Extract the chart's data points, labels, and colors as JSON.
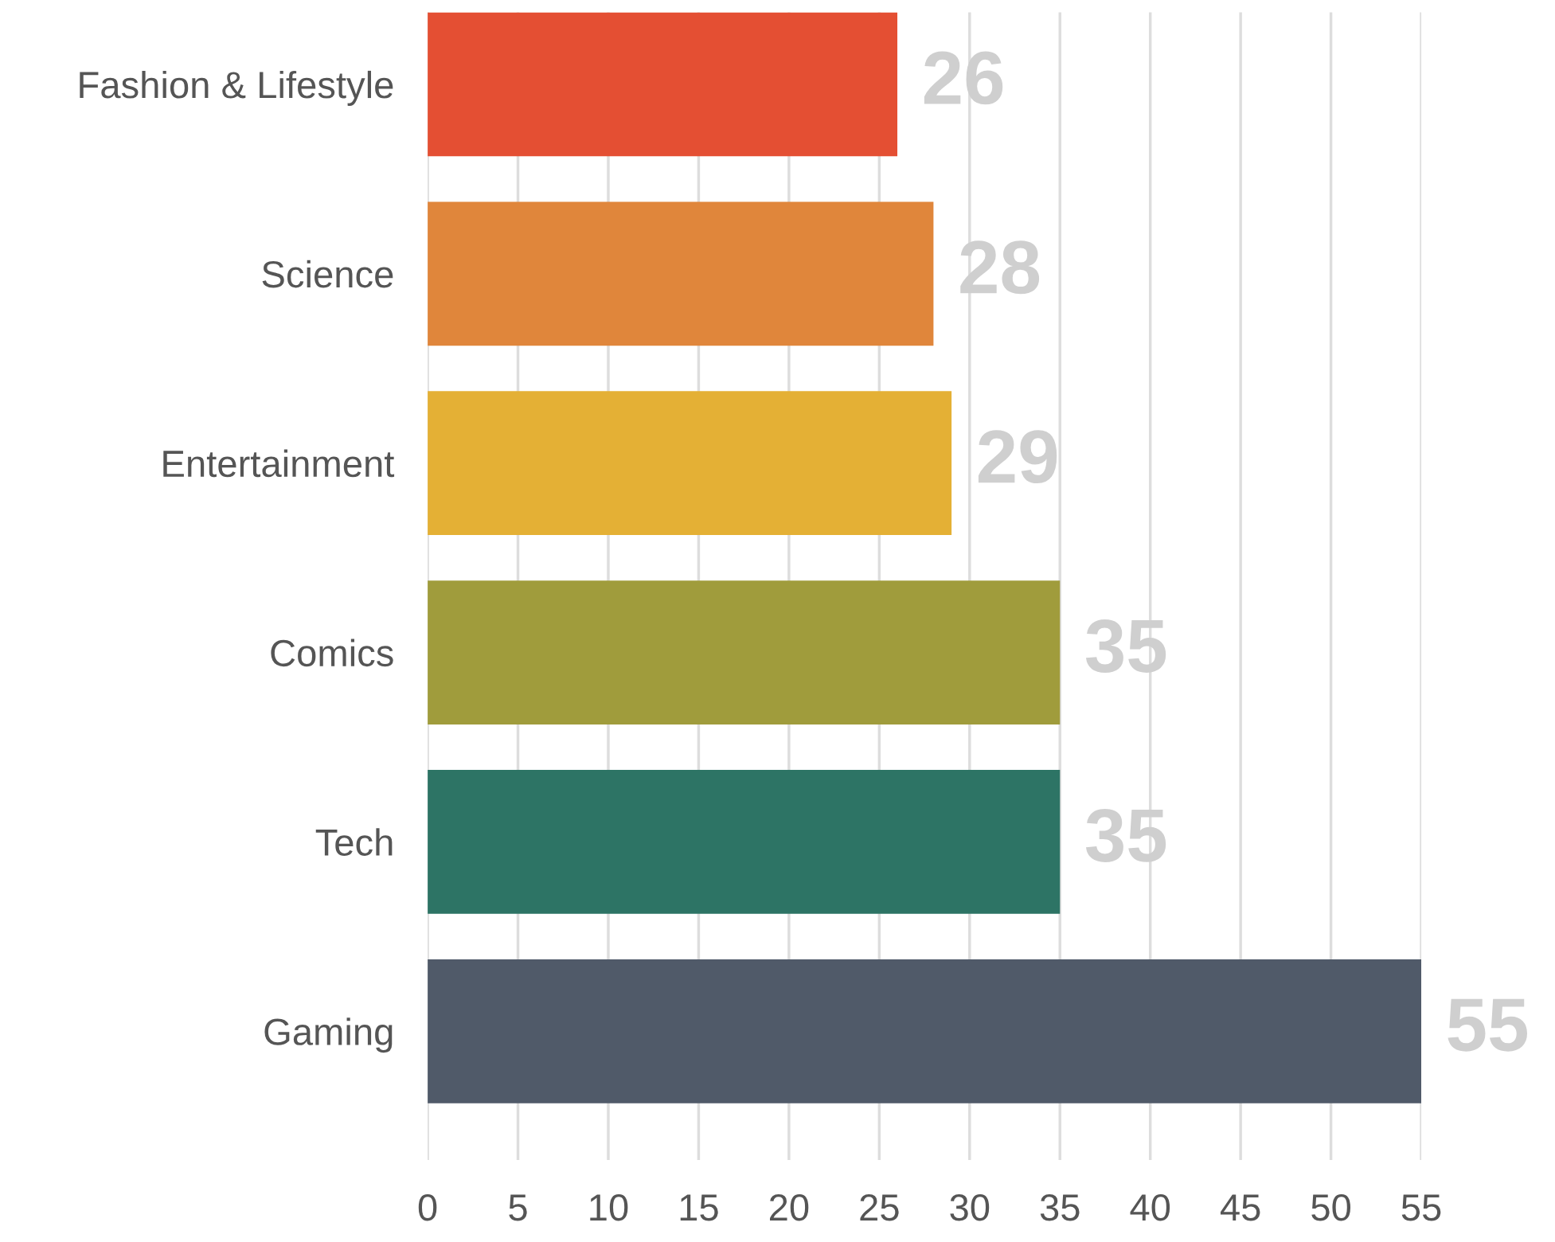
{
  "chart_data": {
    "type": "bar",
    "orientation": "horizontal",
    "categories": [
      "Fashion & Lifestyle",
      "Science",
      "Entertainment",
      "Comics",
      "Tech",
      "Gaming"
    ],
    "values": [
      26,
      28,
      29,
      35,
      35,
      55
    ],
    "colors": [
      "#e44f33",
      "#e0863b",
      "#e4b035",
      "#a09c3c",
      "#2d7465",
      "#505a69"
    ],
    "xlim": [
      0,
      55
    ],
    "xticks": [
      0,
      5,
      10,
      15,
      20,
      25,
      30,
      35,
      40,
      45,
      50,
      55
    ],
    "grid": "x",
    "data_labels": true
  }
}
